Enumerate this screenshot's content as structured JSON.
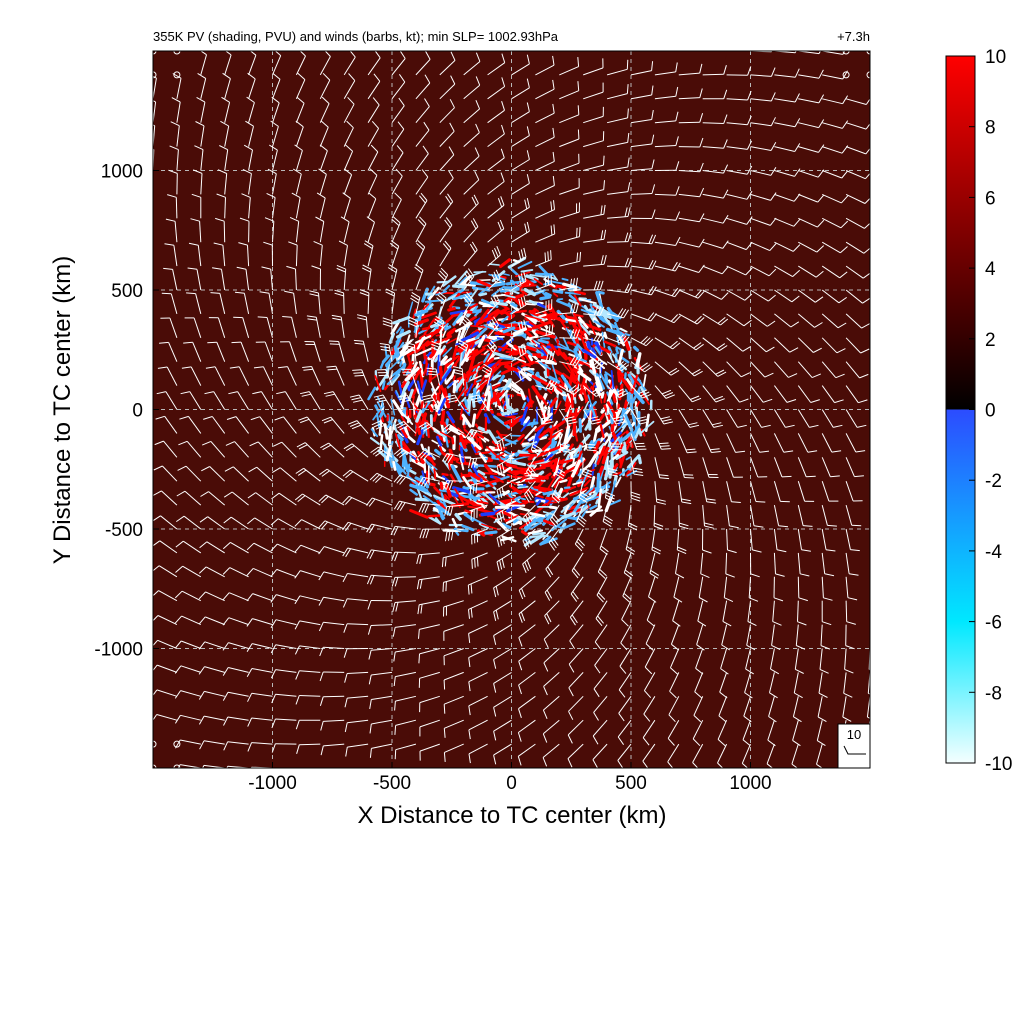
{
  "chart_data": {
    "type": "heatmap",
    "title": "355K PV (shading, PVU) and winds (barbs, kt); min SLP= 1002.93hPa",
    "time_label": "+7.3h",
    "xlabel": "X Distance to TC center (km)",
    "ylabel": "Y Distance to TC center (km)",
    "xlim": [
      -1500,
      1500
    ],
    "ylim": [
      -1500,
      1500
    ],
    "x_ticks": [
      -1000,
      -500,
      0,
      500,
      1000
    ],
    "x_tick_labels": [
      "-1000",
      "-500",
      "0",
      "500",
      "1000"
    ],
    "y_ticks": [
      -1000,
      -500,
      0,
      500,
      1000
    ],
    "y_tick_labels": [
      "-1000",
      "-500",
      "0",
      "500",
      "1000"
    ],
    "grid": true,
    "grid_style": "dashed",
    "colorbar": {
      "range": [
        -10,
        10
      ],
      "ticks": [
        10,
        8,
        6,
        4,
        2,
        0,
        -2,
        -4,
        -6,
        -8,
        -10
      ],
      "tick_labels": [
        "10",
        "8",
        "6",
        "4",
        "2",
        "0",
        "-2",
        "-4",
        "-6",
        "-8",
        "-10"
      ],
      "colors": {
        "pos_low": "#000000",
        "pos_mid": "#4a0c07",
        "pos_high": "#ff0000",
        "neg_near_zero": "#2c4cff",
        "neg_mid": "#00e8ff",
        "neg_low": "#f4ffff"
      }
    },
    "background_pv": 1.6,
    "background_color": "#4a0c07",
    "disturbance_region": {
      "center_km": [
        0,
        20
      ],
      "radius_km": 580,
      "colors": [
        "#ff0000",
        "#ffffff",
        "#4fb3ff",
        "#1a3cff",
        "#b4e8ff"
      ]
    },
    "wind_barbs": {
      "spacing_km": 100,
      "color": "#ffffff",
      "calm_marker": "circle",
      "reference": {
        "label": "10",
        "speed_kt": 10
      }
    }
  }
}
